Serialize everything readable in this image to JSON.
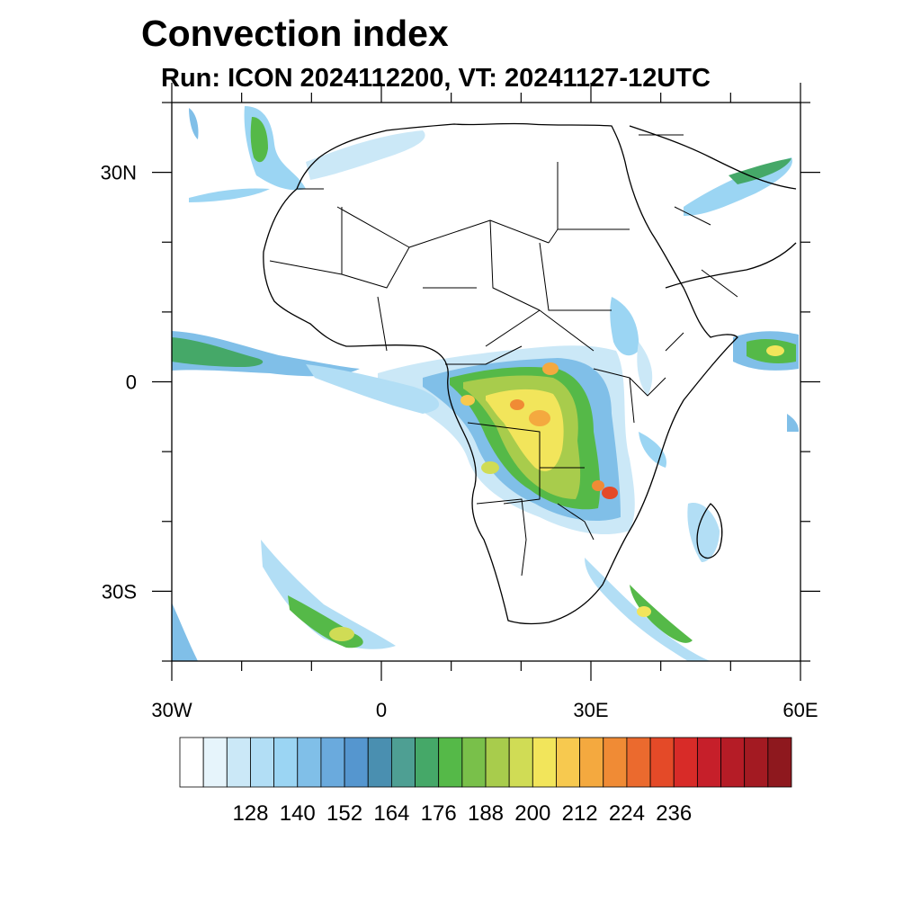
{
  "title": "Convection index",
  "subtitle": "Run: ICON 2024112200,  VT: 20241127-12UTC",
  "axes": {
    "x_ticks": [
      {
        "value": -30,
        "label": "30W"
      },
      {
        "value": 0,
        "label": "0"
      },
      {
        "value": 30,
        "label": "30E"
      },
      {
        "value": 60,
        "label": "60E"
      }
    ],
    "y_ticks": [
      {
        "value": 30,
        "label": "30N"
      },
      {
        "value": 0,
        "label": "0"
      },
      {
        "value": -30,
        "label": "30S"
      }
    ],
    "lon_range": [
      -30,
      60
    ],
    "lat_range": [
      -40,
      40
    ],
    "minor_tick_step_deg": 10
  },
  "colorbar": {
    "colors": [
      "#ffffff",
      "#e6f4fb",
      "#cbe8f7",
      "#b2def5",
      "#9bd5f3",
      "#80bfe8",
      "#6aaadd",
      "#5596cf",
      "#4a8fb0",
      "#4e9f93",
      "#45a868",
      "#55b948",
      "#79c04a",
      "#a8cc4c",
      "#d0dc55",
      "#f2e55b",
      "#f7c94f",
      "#f4a93f",
      "#f08b35",
      "#eb6a2e",
      "#e44a28",
      "#d82b28",
      "#c61f2a",
      "#b51c26",
      "#a31a22",
      "#8e181e"
    ],
    "tick_labels": [
      "128",
      "140",
      "152",
      "164",
      "176",
      "188",
      "200",
      "212",
      "224",
      "236"
    ]
  },
  "map": {
    "land_fill": "#ffffff",
    "ocean_fill": "#ffffff",
    "border_color": "#000000"
  }
}
